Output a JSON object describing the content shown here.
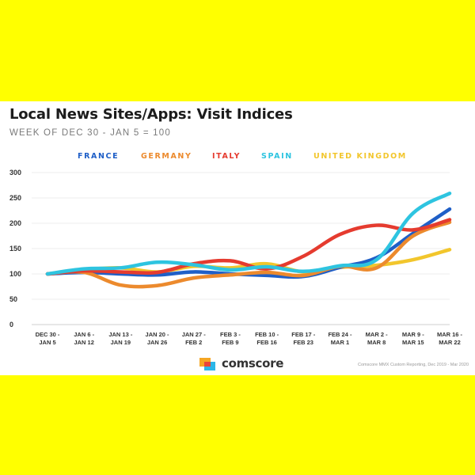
{
  "header": {
    "title": "Local News Sites/Apps: Visit Indices",
    "subtitle": "WEEK OF DEC 30 - JAN 5 = 100"
  },
  "brand": {
    "name": "comscore",
    "logo_icon": "comscore-logo-icon"
  },
  "source_note": "Comscore MMX Custom Reporting, Dec 2019 - Mar 2020",
  "colors": {
    "France": "#1f5fc7",
    "Germany": "#ec8a2d",
    "Italy": "#e53b2f",
    "Spain": "#2ec4e0",
    "United Kingdom": "#f2c62c"
  },
  "chart_data": {
    "type": "line",
    "title": "Local News Sites/Apps: Visit Indices",
    "subtitle": "WEEK OF DEC 30 - JAN 5 = 100",
    "categories": [
      [
        "DEC 30 -",
        "JAN 5"
      ],
      [
        "JAN 6 -",
        "JAN 12"
      ],
      [
        "JAN 13 -",
        "JAN 19"
      ],
      [
        "JAN 20 -",
        "JAN 26"
      ],
      [
        "JAN 27 -",
        "FEB 2"
      ],
      [
        "FEB 3 -",
        "FEB 9"
      ],
      [
        "FEB 10 -",
        "FEB 16"
      ],
      [
        "FEB 17 -",
        "FEB 23"
      ],
      [
        "FEB 24 -",
        "MAR 1"
      ],
      [
        "MAR 2 -",
        "MAR 8"
      ],
      [
        "MAR 9 -",
        "MAR 15"
      ],
      [
        "MAR 16 -",
        "MAR 22"
      ]
    ],
    "ylim": [
      0,
      300
    ],
    "yticks": [
      0,
      50,
      100,
      150,
      200,
      250,
      300
    ],
    "grid": true,
    "legend_position": "top",
    "series": [
      {
        "name": "FRANCE",
        "color": "#1f5fc7",
        "values": [
          100,
          103,
          100,
          98,
          104,
          100,
          97,
          95,
          113,
          132,
          180,
          228
        ]
      },
      {
        "name": "GERMANY",
        "color": "#ec8a2d",
        "values": [
          100,
          103,
          78,
          77,
          92,
          98,
          103,
          97,
          115,
          112,
          175,
          202
        ]
      },
      {
        "name": "ITALY",
        "color": "#e53b2f",
        "values": [
          100,
          106,
          104,
          103,
          120,
          126,
          110,
          135,
          178,
          196,
          187,
          207
        ]
      },
      {
        "name": "SPAIN",
        "color": "#2ec4e0",
        "values": [
          100,
          110,
          112,
          123,
          118,
          108,
          114,
          105,
          116,
          128,
          220,
          259
        ]
      },
      {
        "name": "UNITED KINGDOM",
        "color": "#f2c62c",
        "values": [
          100,
          108,
          112,
          104,
          115,
          112,
          120,
          104,
          113,
          117,
          128,
          148
        ]
      }
    ]
  }
}
